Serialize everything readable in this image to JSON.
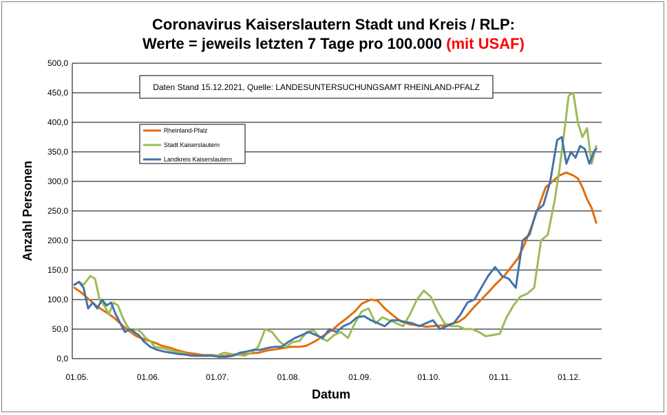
{
  "chart_data": {
    "type": "line",
    "title_line1": "Coronavirus Kaiserslautern Stadt und Kreis / RLP:",
    "title_line2": "Werte = jeweils letzten 7 Tage pro 100.000",
    "title_highlight": "(mit USAF)",
    "title_highlight_color": "#ff0000",
    "note": "Daten Stand 15.12.2021, Quelle: LANDESUNTERSUCHUNGSAMT RHEINLAND-PFALZ",
    "xlabel": "Datum",
    "ylabel": "Anzahl Personen",
    "ylim": [
      0,
      500
    ],
    "yticks": [
      "0,0",
      "50,0",
      "100,0",
      "150,0",
      "200,0",
      "250,0",
      "300,0",
      "350,0",
      "400,0",
      "450,0",
      "500,0"
    ],
    "xticks": [
      "01.05.",
      "01.06.",
      "01.07.",
      "01.08.",
      "01.09.",
      "01.10.",
      "01.11.",
      "01.12."
    ],
    "xtick_days": [
      0,
      31,
      61,
      92,
      123,
      153,
      184,
      214
    ],
    "xlim_days": [
      0,
      227
    ],
    "grid": true,
    "legend_position": "top-left",
    "series": [
      {
        "name": "Rheinland-Pfalz",
        "color": "#e46c0a",
        "x": [
          0,
          3,
          7,
          10,
          14,
          17,
          21,
          24,
          27,
          31,
          35,
          38,
          42,
          45,
          49,
          53,
          56,
          60,
          63,
          66,
          70,
          73,
          77,
          80,
          84,
          88,
          91,
          94,
          98,
          101,
          105,
          108,
          112,
          115,
          119,
          122,
          125,
          129,
          132,
          135,
          139,
          142,
          146,
          150,
          153,
          156,
          160,
          163,
          167,
          170,
          174,
          177,
          180,
          183,
          187,
          190,
          193,
          196,
          199,
          202,
          205,
          208,
          211,
          214,
          217,
          219,
          221,
          223,
          225,
          227
        ],
        "y": [
          120,
          112,
          98,
          88,
          78,
          70,
          56,
          46,
          38,
          32,
          27,
          22,
          18,
          14,
          10,
          8,
          6,
          6,
          5,
          5,
          6,
          7,
          9,
          10,
          14,
          16,
          18,
          20,
          20,
          22,
          30,
          38,
          48,
          58,
          70,
          80,
          93,
          100,
          98,
          85,
          72,
          63,
          58,
          56,
          54,
          55,
          56,
          58,
          62,
          70,
          88,
          100,
          112,
          125,
          140,
          155,
          170,
          195,
          225,
          258,
          290,
          300,
          310,
          315,
          310,
          305,
          290,
          270,
          255,
          230
        ]
      },
      {
        "name": "Stadt Kaiserslautern",
        "color": "#9bbb59",
        "x": [
          0,
          2,
          4,
          7,
          9,
          11,
          13,
          15,
          17,
          19,
          21,
          23,
          25,
          27,
          29,
          31,
          33,
          35,
          38,
          41,
          44,
          47,
          50,
          53,
          56,
          59,
          62,
          65,
          68,
          70,
          72,
          74,
          77,
          80,
          83,
          86,
          89,
          92,
          95,
          98,
          101,
          104,
          107,
          110,
          113,
          116,
          119,
          122,
          125,
          128,
          131,
          134,
          137,
          140,
          143,
          146,
          149,
          152,
          155,
          158,
          161,
          164,
          167,
          170,
          173,
          176,
          179,
          182,
          185,
          188,
          191,
          194,
          197,
          200,
          203,
          206,
          209,
          211,
          213,
          215,
          217,
          219,
          221,
          223,
          225,
          227
        ],
        "y": [
          125,
          130,
          125,
          140,
          135,
          100,
          90,
          75,
          95,
          90,
          70,
          55,
          45,
          50,
          45,
          35,
          30,
          20,
          18,
          15,
          12,
          10,
          6,
          5,
          5,
          5,
          5,
          10,
          8,
          7,
          6,
          5,
          10,
          20,
          50,
          45,
          30,
          20,
          28,
          30,
          45,
          48,
          35,
          30,
          40,
          45,
          35,
          60,
          80,
          85,
          60,
          70,
          65,
          60,
          55,
          75,
          100,
          115,
          105,
          80,
          60,
          55,
          55,
          50,
          50,
          45,
          38,
          40,
          42,
          70,
          90,
          105,
          110,
          120,
          200,
          210,
          270,
          320,
          380,
          445,
          450,
          400,
          375,
          390,
          330,
          360
        ]
      },
      {
        "name": "Landkreis Kaiserslautern",
        "color": "#4472a8",
        "x": [
          0,
          2,
          4,
          6,
          8,
          10,
          12,
          14,
          16,
          18,
          20,
          22,
          24,
          26,
          28,
          30,
          33,
          36,
          39,
          42,
          45,
          48,
          51,
          54,
          57,
          60,
          63,
          66,
          69,
          72,
          75,
          78,
          81,
          84,
          87,
          90,
          93,
          96,
          99,
          102,
          105,
          108,
          111,
          114,
          117,
          120,
          123,
          126,
          129,
          132,
          135,
          138,
          141,
          144,
          147,
          150,
          153,
          156,
          159,
          162,
          165,
          168,
          171,
          174,
          177,
          180,
          183,
          186,
          189,
          192,
          195,
          198,
          201,
          204,
          207,
          210,
          212,
          214,
          216,
          218,
          220,
          222,
          224,
          226,
          227
        ],
        "y": [
          125,
          130,
          120,
          85,
          95,
          85,
          100,
          90,
          95,
          75,
          60,
          45,
          50,
          45,
          40,
          30,
          20,
          15,
          12,
          10,
          8,
          7,
          5,
          5,
          5,
          5,
          3,
          3,
          5,
          10,
          12,
          15,
          15,
          18,
          20,
          20,
          28,
          35,
          40,
          45,
          40,
          35,
          50,
          45,
          55,
          60,
          70,
          72,
          65,
          60,
          55,
          65,
          65,
          62,
          60,
          55,
          60,
          65,
          50,
          55,
          60,
          75,
          95,
          100,
          120,
          140,
          155,
          140,
          135,
          120,
          200,
          210,
          250,
          260,
          300,
          370,
          375,
          330,
          350,
          340,
          360,
          355,
          330,
          350,
          355
        ]
      }
    ]
  }
}
